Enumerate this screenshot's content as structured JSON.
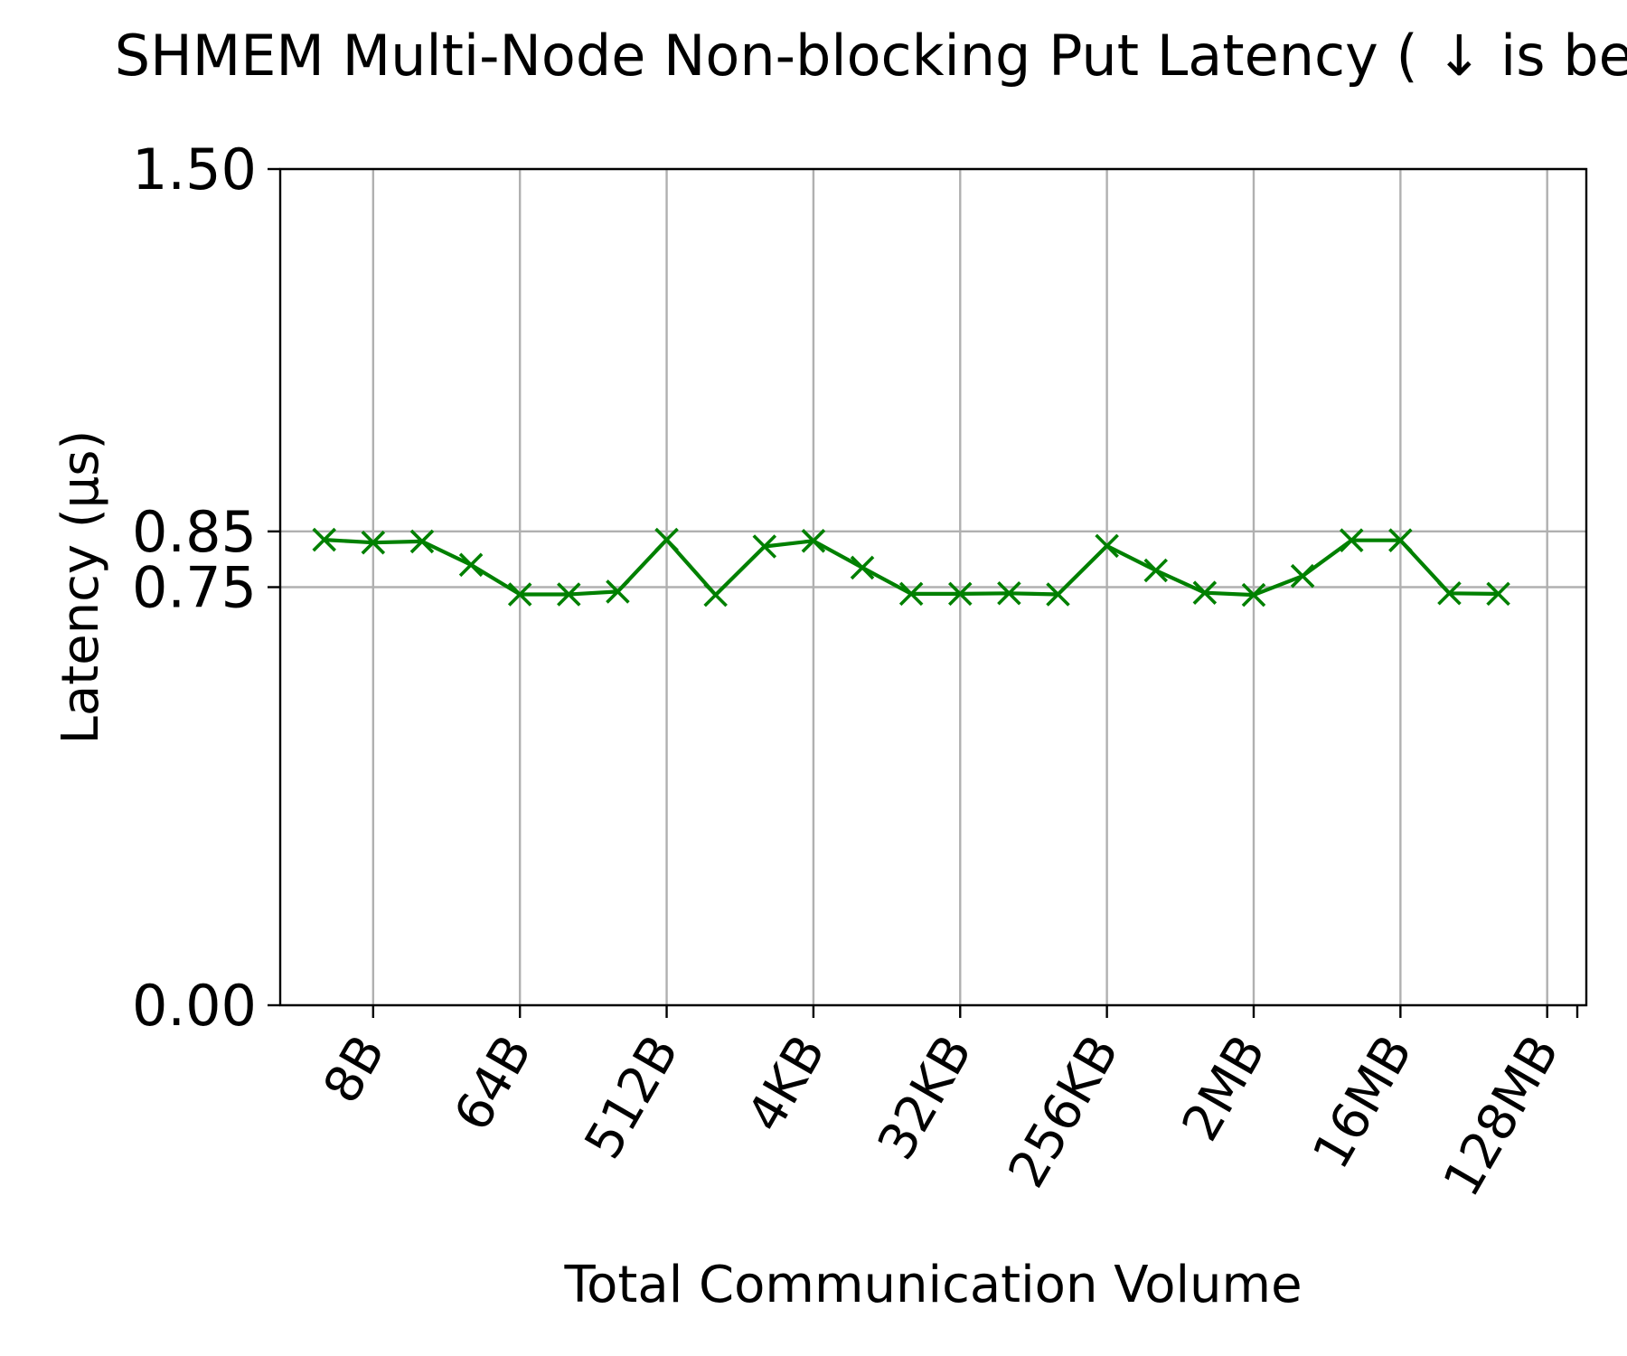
{
  "chart_data": {
    "type": "line",
    "title": "SHMEM Multi-Node Non-blocking Put Latency ( ↓  is better)",
    "xlabel": "Total Communication Volume",
    "ylabel": "Latency (μs)",
    "ylim": [
      0,
      1.5
    ],
    "yticks": [
      0.0,
      0.75,
      0.85,
      1.5
    ],
    "ytick_labels": [
      "0.00",
      "0.75",
      "0.85",
      "1.50"
    ],
    "x_tick_labels": [
      "8B",
      "64B",
      "512B",
      "4KB",
      "32KB",
      "256KB",
      "2MB",
      "16MB",
      "128MB"
    ],
    "x_tick_positions": [
      8,
      64,
      512,
      4096,
      32768,
      262144,
      2097152,
      16777216,
      134217728
    ],
    "x_scale": "log2",
    "grid": true,
    "color": "#008000",
    "marker": "x",
    "series": [
      {
        "x": [
          4,
          8,
          16,
          32,
          64,
          128,
          256,
          512,
          1024,
          2048,
          4096,
          8192,
          16384,
          32768,
          65536,
          131072,
          262144,
          524288,
          1048576,
          2097152,
          4194304,
          8388608,
          16777216,
          33554432,
          67108864
        ],
        "values": [
          0.835,
          0.83,
          0.832,
          0.79,
          0.737,
          0.737,
          0.742,
          0.835,
          0.736,
          0.823,
          0.833,
          0.785,
          0.738,
          0.738,
          0.739,
          0.737,
          0.824,
          0.78,
          0.74,
          0.736,
          0.77,
          0.834,
          0.834,
          0.739,
          0.738
        ]
      }
    ]
  }
}
